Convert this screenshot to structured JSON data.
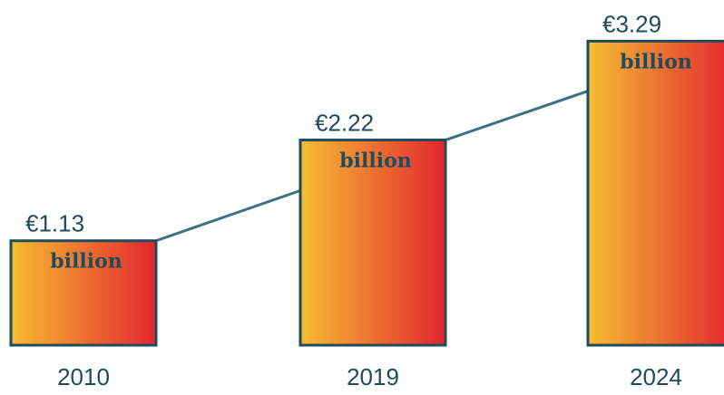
{
  "chart_data": {
    "type": "bar",
    "categories": [
      "2010",
      "2019",
      "2024"
    ],
    "values": [
      1.13,
      2.22,
      3.29
    ],
    "value_labels": [
      "€1.13",
      "€2.22",
      "€3.29"
    ],
    "unit": "billion",
    "color": [
      "#f6bd33",
      "#e3262f"
    ],
    "line_color": "#3b7283",
    "border_color": "#1f4c5c"
  }
}
